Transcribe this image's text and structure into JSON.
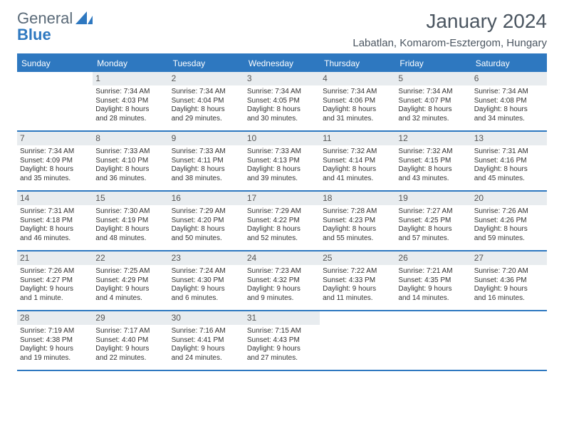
{
  "logo": {
    "word1": "General",
    "word2": "Blue"
  },
  "header": {
    "title": "January 2024",
    "location": "Labatlan, Komarom-Esztergom, Hungary"
  },
  "colors": {
    "accent": "#2e78c0",
    "daynum_bg": "#e8ecef",
    "text": "#333333",
    "muted": "#5a6a78"
  },
  "days_of_week": [
    "Sunday",
    "Monday",
    "Tuesday",
    "Wednesday",
    "Thursday",
    "Friday",
    "Saturday"
  ],
  "weeks": [
    [
      {
        "empty": true
      },
      {
        "day": "1",
        "sunrise": "Sunrise: 7:34 AM",
        "sunset": "Sunset: 4:03 PM",
        "dl1": "Daylight: 8 hours",
        "dl2": "and 28 minutes."
      },
      {
        "day": "2",
        "sunrise": "Sunrise: 7:34 AM",
        "sunset": "Sunset: 4:04 PM",
        "dl1": "Daylight: 8 hours",
        "dl2": "and 29 minutes."
      },
      {
        "day": "3",
        "sunrise": "Sunrise: 7:34 AM",
        "sunset": "Sunset: 4:05 PM",
        "dl1": "Daylight: 8 hours",
        "dl2": "and 30 minutes."
      },
      {
        "day": "4",
        "sunrise": "Sunrise: 7:34 AM",
        "sunset": "Sunset: 4:06 PM",
        "dl1": "Daylight: 8 hours",
        "dl2": "and 31 minutes."
      },
      {
        "day": "5",
        "sunrise": "Sunrise: 7:34 AM",
        "sunset": "Sunset: 4:07 PM",
        "dl1": "Daylight: 8 hours",
        "dl2": "and 32 minutes."
      },
      {
        "day": "6",
        "sunrise": "Sunrise: 7:34 AM",
        "sunset": "Sunset: 4:08 PM",
        "dl1": "Daylight: 8 hours",
        "dl2": "and 34 minutes."
      }
    ],
    [
      {
        "day": "7",
        "sunrise": "Sunrise: 7:34 AM",
        "sunset": "Sunset: 4:09 PM",
        "dl1": "Daylight: 8 hours",
        "dl2": "and 35 minutes."
      },
      {
        "day": "8",
        "sunrise": "Sunrise: 7:33 AM",
        "sunset": "Sunset: 4:10 PM",
        "dl1": "Daylight: 8 hours",
        "dl2": "and 36 minutes."
      },
      {
        "day": "9",
        "sunrise": "Sunrise: 7:33 AM",
        "sunset": "Sunset: 4:11 PM",
        "dl1": "Daylight: 8 hours",
        "dl2": "and 38 minutes."
      },
      {
        "day": "10",
        "sunrise": "Sunrise: 7:33 AM",
        "sunset": "Sunset: 4:13 PM",
        "dl1": "Daylight: 8 hours",
        "dl2": "and 39 minutes."
      },
      {
        "day": "11",
        "sunrise": "Sunrise: 7:32 AM",
        "sunset": "Sunset: 4:14 PM",
        "dl1": "Daylight: 8 hours",
        "dl2": "and 41 minutes."
      },
      {
        "day": "12",
        "sunrise": "Sunrise: 7:32 AM",
        "sunset": "Sunset: 4:15 PM",
        "dl1": "Daylight: 8 hours",
        "dl2": "and 43 minutes."
      },
      {
        "day": "13",
        "sunrise": "Sunrise: 7:31 AM",
        "sunset": "Sunset: 4:16 PM",
        "dl1": "Daylight: 8 hours",
        "dl2": "and 45 minutes."
      }
    ],
    [
      {
        "day": "14",
        "sunrise": "Sunrise: 7:31 AM",
        "sunset": "Sunset: 4:18 PM",
        "dl1": "Daylight: 8 hours",
        "dl2": "and 46 minutes."
      },
      {
        "day": "15",
        "sunrise": "Sunrise: 7:30 AM",
        "sunset": "Sunset: 4:19 PM",
        "dl1": "Daylight: 8 hours",
        "dl2": "and 48 minutes."
      },
      {
        "day": "16",
        "sunrise": "Sunrise: 7:29 AM",
        "sunset": "Sunset: 4:20 PM",
        "dl1": "Daylight: 8 hours",
        "dl2": "and 50 minutes."
      },
      {
        "day": "17",
        "sunrise": "Sunrise: 7:29 AM",
        "sunset": "Sunset: 4:22 PM",
        "dl1": "Daylight: 8 hours",
        "dl2": "and 52 minutes."
      },
      {
        "day": "18",
        "sunrise": "Sunrise: 7:28 AM",
        "sunset": "Sunset: 4:23 PM",
        "dl1": "Daylight: 8 hours",
        "dl2": "and 55 minutes."
      },
      {
        "day": "19",
        "sunrise": "Sunrise: 7:27 AM",
        "sunset": "Sunset: 4:25 PM",
        "dl1": "Daylight: 8 hours",
        "dl2": "and 57 minutes."
      },
      {
        "day": "20",
        "sunrise": "Sunrise: 7:26 AM",
        "sunset": "Sunset: 4:26 PM",
        "dl1": "Daylight: 8 hours",
        "dl2": "and 59 minutes."
      }
    ],
    [
      {
        "day": "21",
        "sunrise": "Sunrise: 7:26 AM",
        "sunset": "Sunset: 4:27 PM",
        "dl1": "Daylight: 9 hours",
        "dl2": "and 1 minute."
      },
      {
        "day": "22",
        "sunrise": "Sunrise: 7:25 AM",
        "sunset": "Sunset: 4:29 PM",
        "dl1": "Daylight: 9 hours",
        "dl2": "and 4 minutes."
      },
      {
        "day": "23",
        "sunrise": "Sunrise: 7:24 AM",
        "sunset": "Sunset: 4:30 PM",
        "dl1": "Daylight: 9 hours",
        "dl2": "and 6 minutes."
      },
      {
        "day": "24",
        "sunrise": "Sunrise: 7:23 AM",
        "sunset": "Sunset: 4:32 PM",
        "dl1": "Daylight: 9 hours",
        "dl2": "and 9 minutes."
      },
      {
        "day": "25",
        "sunrise": "Sunrise: 7:22 AM",
        "sunset": "Sunset: 4:33 PM",
        "dl1": "Daylight: 9 hours",
        "dl2": "and 11 minutes."
      },
      {
        "day": "26",
        "sunrise": "Sunrise: 7:21 AM",
        "sunset": "Sunset: 4:35 PM",
        "dl1": "Daylight: 9 hours",
        "dl2": "and 14 minutes."
      },
      {
        "day": "27",
        "sunrise": "Sunrise: 7:20 AM",
        "sunset": "Sunset: 4:36 PM",
        "dl1": "Daylight: 9 hours",
        "dl2": "and 16 minutes."
      }
    ],
    [
      {
        "day": "28",
        "sunrise": "Sunrise: 7:19 AM",
        "sunset": "Sunset: 4:38 PM",
        "dl1": "Daylight: 9 hours",
        "dl2": "and 19 minutes."
      },
      {
        "day": "29",
        "sunrise": "Sunrise: 7:17 AM",
        "sunset": "Sunset: 4:40 PM",
        "dl1": "Daylight: 9 hours",
        "dl2": "and 22 minutes."
      },
      {
        "day": "30",
        "sunrise": "Sunrise: 7:16 AM",
        "sunset": "Sunset: 4:41 PM",
        "dl1": "Daylight: 9 hours",
        "dl2": "and 24 minutes."
      },
      {
        "day": "31",
        "sunrise": "Sunrise: 7:15 AM",
        "sunset": "Sunset: 4:43 PM",
        "dl1": "Daylight: 9 hours",
        "dl2": "and 27 minutes."
      },
      {
        "empty": true
      },
      {
        "empty": true
      },
      {
        "empty": true
      }
    ]
  ]
}
